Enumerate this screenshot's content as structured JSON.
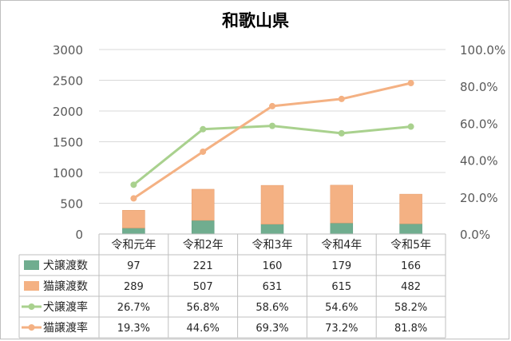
{
  "chart_data": {
    "type": "bar",
    "title": "和歌山県",
    "categories": [
      "令和元年",
      "令和2年",
      "令和3年",
      "令和4年",
      "令和5年"
    ],
    "y_left": {
      "ylim": [
        0,
        3000
      ],
      "ticks": [
        "0",
        "500",
        "1000",
        "1500",
        "2000",
        "2500",
        "3000"
      ]
    },
    "y_right": {
      "ylim": [
        0,
        100
      ],
      "ticks": [
        "0.0%",
        "20.0%",
        "40.0%",
        "60.0%",
        "80.0%",
        "100.0%"
      ]
    },
    "gridlines": true,
    "legend": "data table",
    "series": [
      {
        "name": "猫譲渡数",
        "kind": "stacked-bar",
        "axis": "left",
        "color": "#F4B183",
        "values": [
          289,
          507,
          631,
          615,
          482
        ],
        "labels": [
          "289",
          "507",
          "631",
          "615",
          "482"
        ]
      },
      {
        "name": "犬譲渡数",
        "kind": "stacked-bar",
        "axis": "left",
        "color": "#70AD8F",
        "values": [
          97,
          221,
          160,
          179,
          166
        ],
        "labels": [
          "97",
          "221",
          "160",
          "179",
          "166"
        ]
      },
      {
        "name": "犬譲渡率",
        "kind": "line",
        "axis": "right",
        "color": "#A9D18E",
        "values": [
          26.7,
          56.8,
          58.6,
          54.6,
          58.2
        ],
        "labels": [
          "26.7%",
          "56.8%",
          "58.6%",
          "54.6%",
          "58.2%"
        ]
      },
      {
        "name": "猫譲渡率",
        "kind": "line",
        "axis": "right",
        "color": "#F4B183",
        "values": [
          19.3,
          44.6,
          69.3,
          73.2,
          81.8
        ],
        "labels": [
          "19.3%",
          "44.6%",
          "69.3%",
          "73.2%",
          "81.8%"
        ]
      }
    ],
    "table_row_order": [
      1,
      0,
      2,
      3
    ]
  }
}
